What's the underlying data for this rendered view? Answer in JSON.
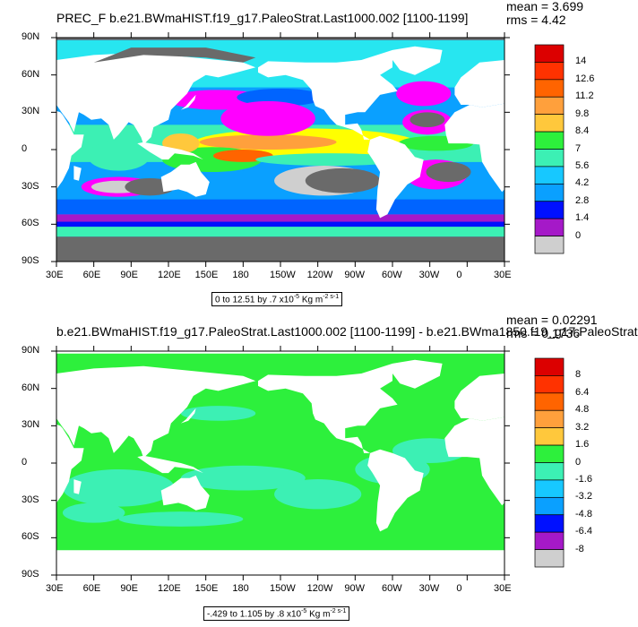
{
  "colors": {
    "land": "#ffffff",
    "frame": "#000000",
    "panel1_palette": [
      "#6a6a6a",
      "#cfcfcf",
      "#a519c8",
      "#ff00ff",
      "#0010ff",
      "#0064ff",
      "#0aa0ff",
      "#17c8ff",
      "#27e6f0",
      "#3cf0b4",
      "#2df03c",
      "#ffff00",
      "#ffc83c",
      "#ffa03c",
      "#ff6400",
      "#ff3200",
      "#dc0000"
    ],
    "panel2_palette": [
      "#6a6a6a",
      "#cfcfcf",
      "#a519c8",
      "#ff00ff",
      "#0010ff",
      "#0064ff",
      "#0aa0ff",
      "#17c8ff",
      "#27e6f0",
      "#3cf0b4",
      "#2df03c",
      "#ffff00",
      "#ffc83c",
      "#ffa03c",
      "#ff6400",
      "#ff3200",
      "#dc0000"
    ]
  },
  "chart_data": [
    {
      "type": "heatmap",
      "title": "PREC_F b.e21.BWmaHIST.f19_g17.PaleoStrat.Last1000.002 [1100-1199]",
      "mean_label": "mean = 3.699",
      "rms_label": "rms = 4.42",
      "range_label_prefix": "0 to 12.51 by .7 x10",
      "range_label_exp": "-5",
      "range_label_unit": " Kg m",
      "range_label_unit_exp": "-2 s-1",
      "x_ticks": [
        "30E",
        "60E",
        "90E",
        "120E",
        "150E",
        "180",
        "150W",
        "120W",
        "90W",
        "60W",
        "30W",
        "0",
        "30E"
      ],
      "y_ticks": [
        "90N",
        "60N",
        "30N",
        "0",
        "30S",
        "60S",
        "90S"
      ],
      "colorbar_labels": [
        "14",
        "12.6",
        "11.2",
        "9.8",
        "8.4",
        "7",
        "5.6",
        "4.2",
        "2.8",
        "1.4",
        "0"
      ],
      "x_range": [
        30,
        390
      ],
      "y_range": [
        -90,
        90
      ]
    },
    {
      "type": "heatmap",
      "title": "b.e21.BWmaHIST.f19_g17.PaleoStrat.Last1000.002 [1100-1199] - b.e21.BWma1850.f19_g17.PaleoStrat",
      "mean_label": "mean = 0.02291",
      "rms_label": "rms = 0.1736",
      "range_label_prefix": "-.429 to 1.105 by .8 x10",
      "range_label_exp": "-5",
      "range_label_unit": " Kg m",
      "range_label_unit_exp": "-2 s-1",
      "x_ticks": [
        "30E",
        "60E",
        "90E",
        "120E",
        "150E",
        "180",
        "150W",
        "120W",
        "90W",
        "60W",
        "30W",
        "0",
        "30E"
      ],
      "y_ticks": [
        "90N",
        "60N",
        "30N",
        "0",
        "30S",
        "60S",
        "90S"
      ],
      "colorbar_labels": [
        "8",
        "6.4",
        "4.8",
        "3.2",
        "1.6",
        "0",
        "-1.6",
        "-3.2",
        "-4.8",
        "-6.4",
        "-8"
      ],
      "x_range": [
        30,
        390
      ],
      "y_range": [
        -90,
        90
      ]
    }
  ]
}
